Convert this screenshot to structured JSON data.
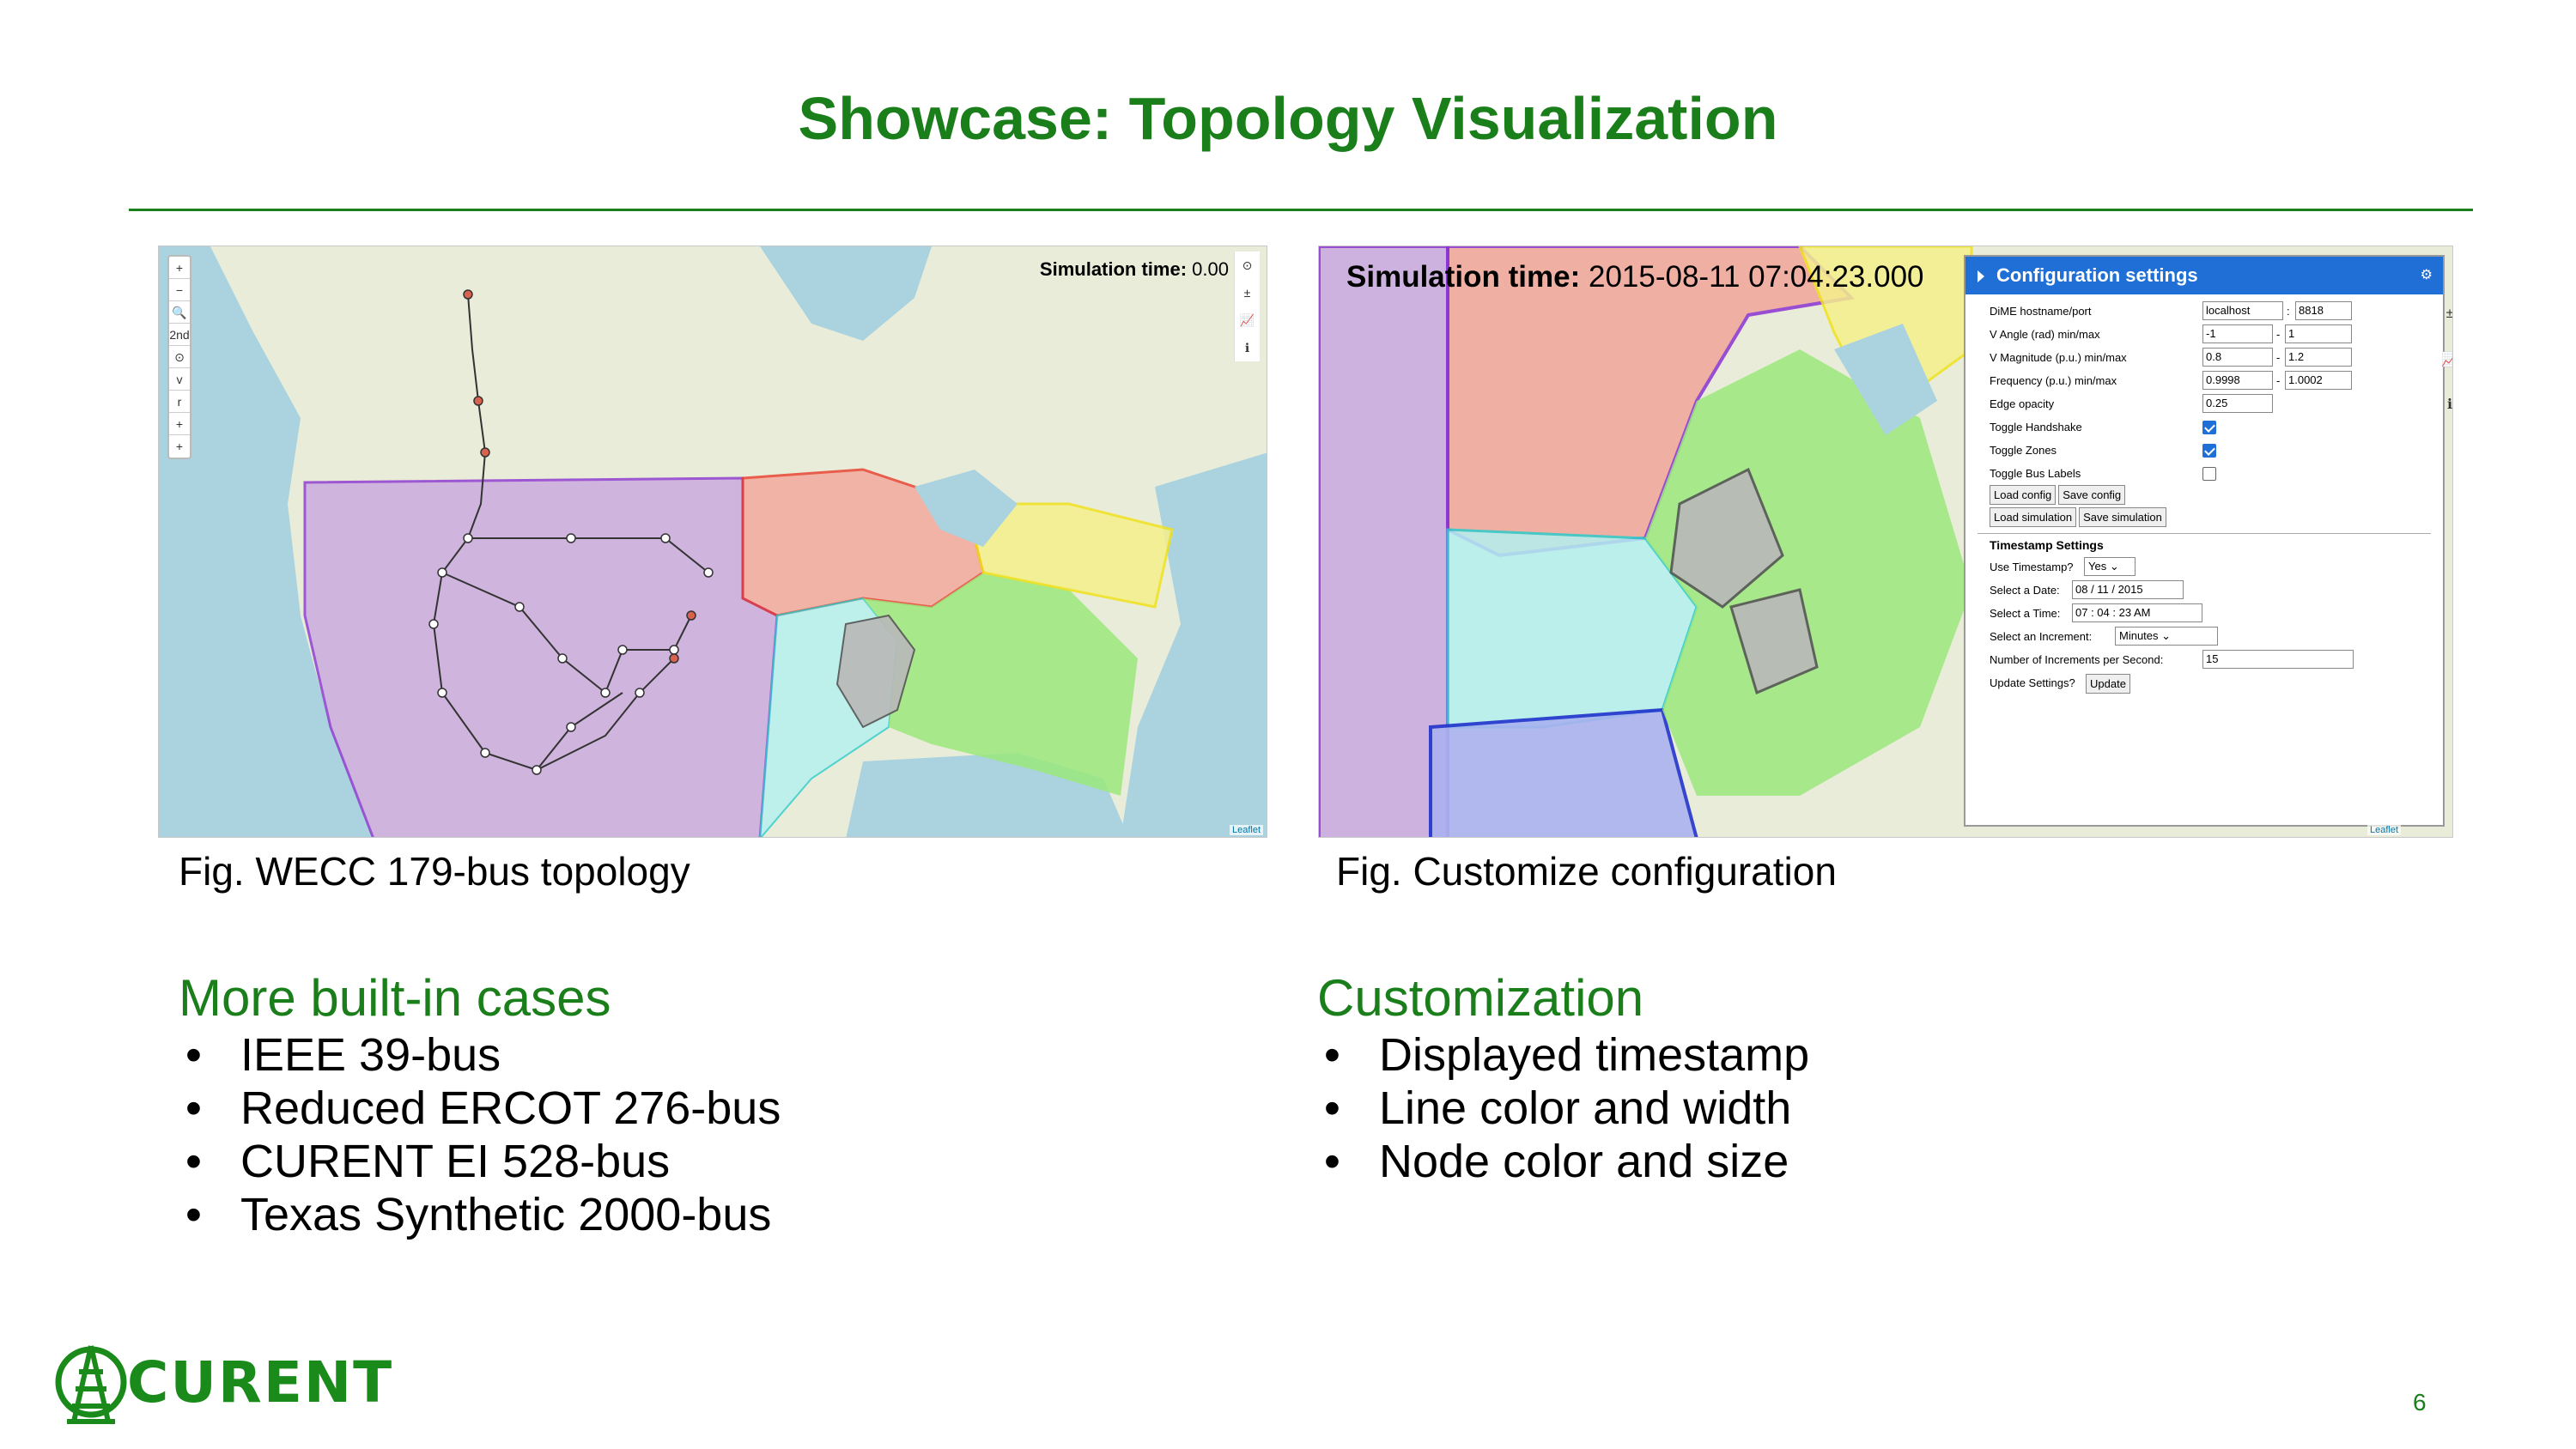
{
  "slide": {
    "title": "Showcase: Topology Visualization",
    "page_number": "6",
    "logo_text": "CURENT"
  },
  "figure1": {
    "sim_time_label": "Simulation time:",
    "sim_time_value": "0.00",
    "caption": "Fig. WECC 179-bus topology",
    "zoom_controls": [
      "+",
      "−",
      "🔍",
      "2nd",
      "⊙",
      "v",
      "r",
      "+",
      "+"
    ],
    "side_tools": [
      "⊙",
      "±",
      "📈",
      "ℹ"
    ],
    "attribution": "Leaflet"
  },
  "figure2": {
    "sim_time_label": "Simulation time:",
    "sim_time_value": "2015-08-11 07:04:23.000",
    "caption": "Fig. Customize configuration",
    "attribution": "Leaflet",
    "config": {
      "title": "Configuration settings",
      "dime_label": "DiME hostname/port",
      "dime_host": "localhost",
      "dime_port": "8818",
      "v_angle_label": "V Angle (rad) min/max",
      "v_angle_min": "-1",
      "v_angle_max": "1",
      "v_mag_label": "V Magnitude (p.u.) min/max",
      "v_mag_min": "0.8",
      "v_mag_max": "1.2",
      "freq_label": "Frequency (p.u.) min/max",
      "freq_min": "0.9998",
      "freq_max": "1.0002",
      "edge_opacity_label": "Edge opacity",
      "edge_opacity": "0.25",
      "toggle_handshake_label": "Toggle Handshake",
      "toggle_handshake": true,
      "toggle_zones_label": "Toggle Zones",
      "toggle_zones": true,
      "toggle_bus_labels_label": "Toggle Bus Labels",
      "toggle_bus_labels": false,
      "load_config": "Load config",
      "save_config": "Save config",
      "load_simulation": "Load simulation",
      "save_simulation": "Save simulation",
      "timestamp_title": "Timestamp Settings",
      "use_timestamp_label": "Use Timestamp?",
      "use_timestamp": "Yes",
      "date_label": "Select a Date:",
      "date_value": "08 / 11 / 2015",
      "time_label": "Select a Time:",
      "time_value": "07 : 04 : 23  AM",
      "increment_label": "Select an Increment:",
      "increment_value": "Minutes",
      "ips_label": "Number of Increments per Second:",
      "ips_value": "15",
      "update_label": "Update Settings?",
      "update_button": "Update"
    }
  },
  "left_section": {
    "title": "More built-in cases",
    "items": [
      "IEEE 39-bus",
      "Reduced ERCOT 276-bus",
      "CURENT EI 528-bus",
      "Texas Synthetic 2000-bus"
    ]
  },
  "right_section": {
    "title": "Customization",
    "items": [
      "Displayed timestamp",
      "Line color and width",
      "Node color and size"
    ]
  }
}
